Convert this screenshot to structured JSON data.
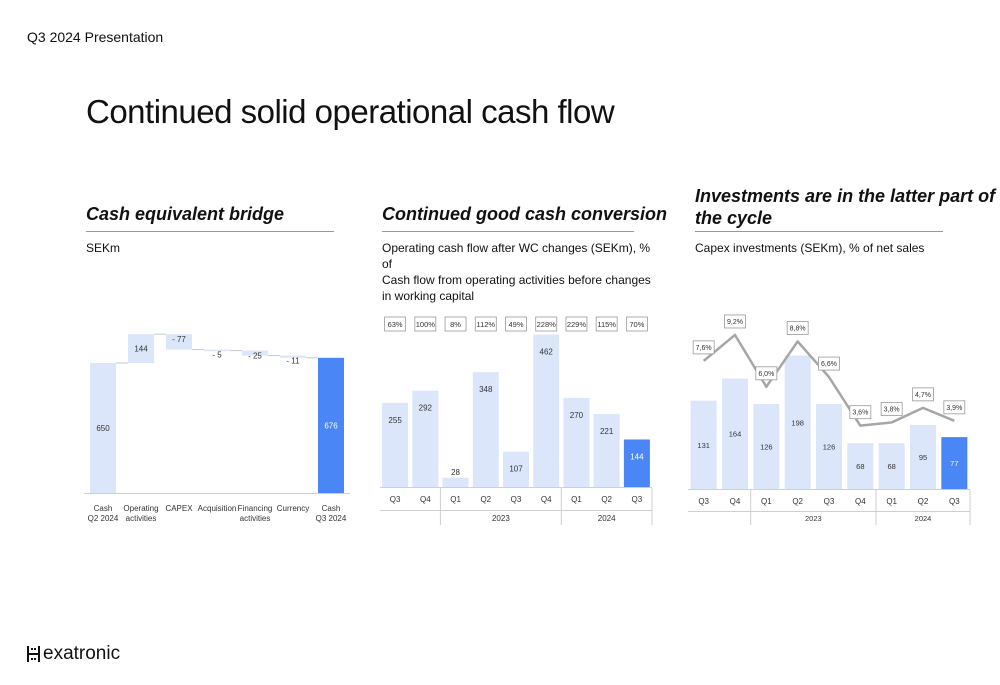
{
  "header": {
    "deck_label": "Q3 2024 Presentation",
    "title": "Continued solid operational cash flow"
  },
  "sections": [
    {
      "title": "Cash equivalent bridge",
      "subtitle": "SEKm"
    },
    {
      "title": "Continued good cash conversion",
      "subtitle_lines": [
        "Operating cash flow after WC changes (SEKm),  % of",
        "Cash flow from operating activities before changes",
        "in working capital"
      ]
    },
    {
      "title_lines": [
        "Investments are in the latter part of",
        "the cycle"
      ],
      "subtitle": "Capex investments (SEKm), % of net sales"
    }
  ],
  "colors": {
    "light_bar": "#dbe6fb",
    "highlight_bar": "#4a86f5",
    "line": "#a6a6a6",
    "connector": "#c9c9c9"
  },
  "chart_data": [
    {
      "type": "bar",
      "subtype": "waterfall",
      "title": "Cash equivalent bridge",
      "unit": "SEKm",
      "steps": [
        {
          "category": "Cash Q2 2024",
          "category_lines": [
            "Cash",
            "Q2 2024"
          ],
          "value": 650,
          "label": "650",
          "kind": "total"
        },
        {
          "category": "Operating activities",
          "category_lines": [
            "Operating",
            "activities"
          ],
          "value": 144,
          "label": "144",
          "kind": "delta"
        },
        {
          "category": "CAPEX",
          "category_lines": [
            "CAPEX"
          ],
          "value": -77,
          "label": "- 77",
          "kind": "delta"
        },
        {
          "category": "Acquisition",
          "category_lines": [
            "Acquisition"
          ],
          "value": -5,
          "label": "- 5",
          "kind": "delta"
        },
        {
          "category": "Financing activities",
          "category_lines": [
            "Financing",
            "activities"
          ],
          "value": -25,
          "label": "- 25",
          "kind": "delta"
        },
        {
          "category": "Currency",
          "category_lines": [
            "Currency"
          ],
          "value": -11,
          "label": "- 11",
          "kind": "delta"
        },
        {
          "category": "Cash Q3 2024",
          "category_lines": [
            "Cash",
            "Q3 2024"
          ],
          "value": 676,
          "label": "676",
          "kind": "total"
        }
      ]
    },
    {
      "type": "bar",
      "title": "Continued good cash conversion",
      "categories": [
        "Q3",
        "Q4",
        "Q1",
        "Q2",
        "Q3",
        "Q4",
        "Q1",
        "Q2",
        "Q3"
      ],
      "groups": [
        {
          "label": "2023",
          "from": 2,
          "to": 5
        },
        {
          "label": "2024",
          "from": 6,
          "to": 8
        }
      ],
      "values": [
        255,
        292,
        28,
        348,
        107,
        462,
        270,
        221,
        144
      ],
      "conversion_labels": [
        "63%",
        "100%",
        "8%",
        "112%",
        "49%",
        "228%",
        "229%",
        "115%",
        "70%"
      ],
      "highlight_index": 8
    },
    {
      "type": "bar",
      "title": "Investments are in the latter part of the cycle",
      "categories": [
        "Q3",
        "Q4",
        "Q1",
        "Q2",
        "Q3",
        "Q4",
        "Q1",
        "Q2",
        "Q3"
      ],
      "groups": [
        {
          "label": "2023",
          "from": 2,
          "to": 5
        },
        {
          "label": "2024",
          "from": 6,
          "to": 8
        }
      ],
      "values": [
        131,
        164,
        126,
        198,
        126,
        68,
        68,
        95,
        77
      ],
      "line_pct": [
        7.6,
        9.2,
        6.0,
        8.8,
        6.6,
        3.6,
        3.8,
        4.7,
        3.9
      ],
      "line_labels": [
        "7,6%",
        "9,2%",
        "6,0%",
        "8,8%",
        "6,6%",
        "3,6%",
        "3,8%",
        "4,7%",
        "3,9%"
      ],
      "highlight_index": 8
    }
  ],
  "logo": {
    "text": "exatronic"
  }
}
